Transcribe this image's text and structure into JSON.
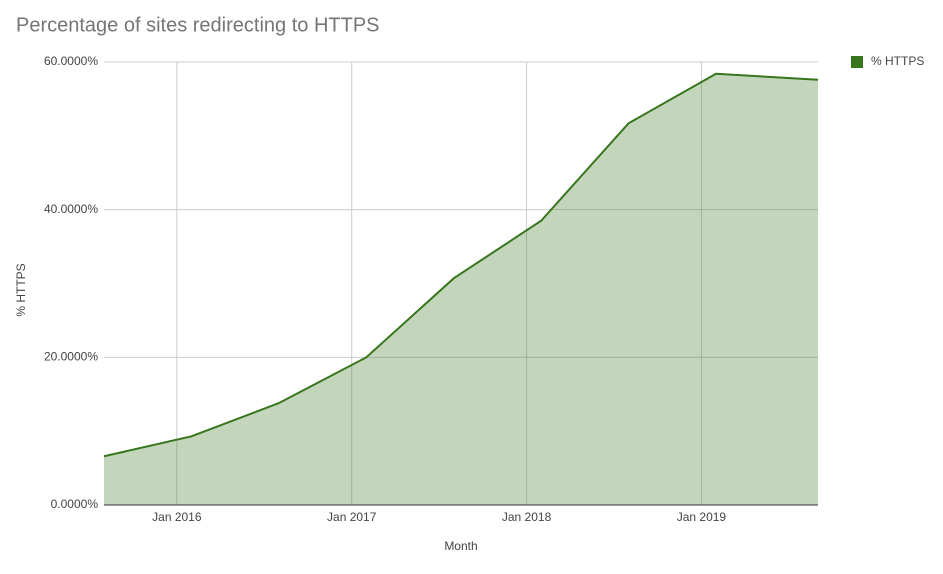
{
  "chart_data": {
    "type": "area",
    "title": "Percentage of sites redirecting to HTTPS",
    "x_label": "Month",
    "y_label": "% HTTPS",
    "x": [
      "2015-08",
      "2016-02",
      "2016-08",
      "2017-02",
      "2017-08",
      "2018-02",
      "2018-08",
      "2019-02",
      "2019-09"
    ],
    "series": [
      {
        "name": "% HTTPS",
        "color": "#38761d",
        "values": [
          6.6,
          9.3,
          13.8,
          20.0,
          30.7,
          38.5,
          51.7,
          58.4,
          57.6
        ]
      }
    ],
    "xlim": [
      "2015-08",
      "2019-09"
    ],
    "xticks": [
      {
        "value": "2016-01",
        "label": "Jan 2016"
      },
      {
        "value": "2017-01",
        "label": "Jan 2017"
      },
      {
        "value": "2018-01",
        "label": "Jan 2018"
      },
      {
        "value": "2019-01",
        "label": "Jan 2019"
      }
    ],
    "ylim": [
      0,
      60
    ],
    "yticks": [
      {
        "value": 0,
        "label": "0.0000%"
      },
      {
        "value": 20,
        "label": "20.0000%"
      },
      {
        "value": 40,
        "label": "40.0000%"
      },
      {
        "value": 60,
        "label": "60.0000%"
      }
    ],
    "grid": true,
    "legend": "top-right"
  }
}
